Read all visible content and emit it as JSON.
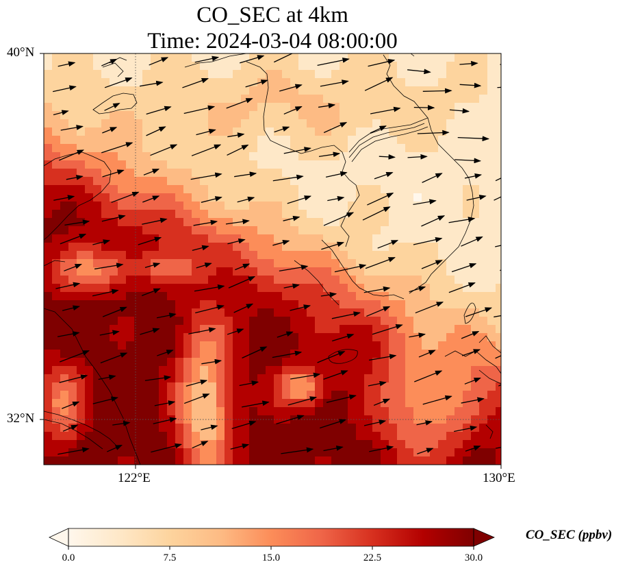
{
  "title": {
    "line1": "CO_SEC at 4km",
    "line2": "Time: 2024-03-04 08:00:00"
  },
  "axes": {
    "lat_labels": [
      "40°N",
      "32°N"
    ],
    "lon_labels": [
      "122°E",
      "130°E"
    ],
    "lon_range": [
      120,
      130
    ],
    "lat_range": [
      31,
      40
    ],
    "gridlines": {
      "lons": [
        122,
        130
      ],
      "lats": [
        32,
        40
      ],
      "style": "dotted"
    }
  },
  "colorbar": {
    "title": "CO_SEC (ppbv)",
    "ticks": [
      "0.0",
      "7.5",
      "15.0",
      "22.5",
      "30.0"
    ],
    "range": [
      0,
      30
    ],
    "extend": "both",
    "colormap": "OrRd",
    "colors": [
      "#fff7ec",
      "#fee8c8",
      "#fdd49e",
      "#fdbb84",
      "#fc8d59",
      "#ef6548",
      "#d7301f",
      "#b30000",
      "#7f0000"
    ]
  },
  "map": {
    "variable": "CO_SEC",
    "level": "4km",
    "overlays": [
      "coastlines",
      "wind-vectors"
    ]
  }
}
